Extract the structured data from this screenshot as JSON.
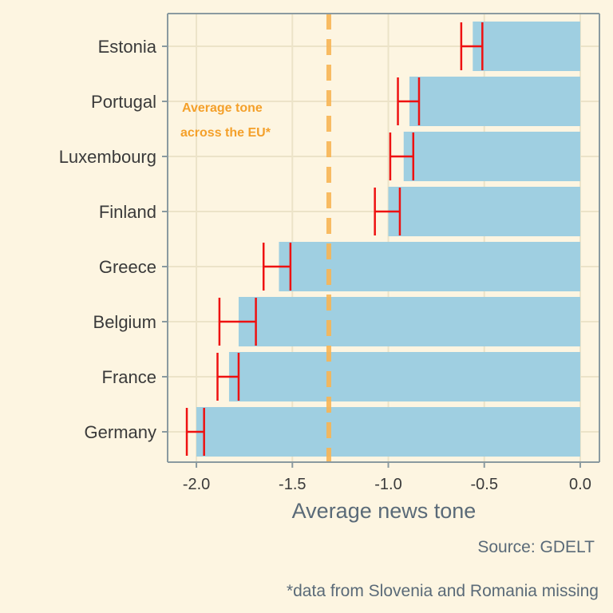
{
  "chart_data": {
    "type": "bar",
    "orientation": "horizontal",
    "categories": [
      "Estonia",
      "Portugal",
      "Luxembourg",
      "Finland",
      "Greece",
      "Belgium",
      "France",
      "Germany"
    ],
    "values": [
      -0.56,
      -0.89,
      -0.92,
      -1.0,
      -1.57,
      -1.78,
      -1.83,
      -2.0
    ],
    "error_low": [
      -0.62,
      -0.95,
      -0.99,
      -1.07,
      -1.65,
      -1.88,
      -1.89,
      -2.05
    ],
    "error_high": [
      -0.51,
      -0.84,
      -0.87,
      -0.94,
      -1.51,
      -1.69,
      -1.78,
      -1.96
    ],
    "x_ticks": [
      "-2.0",
      "-1.5",
      "-1.0",
      "-0.5",
      "0.0"
    ],
    "x_tick_values": [
      -2.0,
      -1.5,
      -1.0,
      -0.5,
      0.0
    ],
    "xlim": [
      -2.15,
      0.1
    ],
    "xlabel": "Average news tone",
    "reference_line": -1.31,
    "annotation": [
      "Average tone",
      "across the EU*"
    ],
    "source": "Source: GDELT",
    "footnote": "*data from Slovenia and Romania missing",
    "grid": true,
    "colors": {
      "background": "#fdf5e1",
      "bar": "#9fcfe1",
      "error": "#ee1111",
      "reference": "#f8b555",
      "annotation": "#f4a02a",
      "grid": "#ece3c8",
      "axis": "#8a9aa0"
    }
  }
}
